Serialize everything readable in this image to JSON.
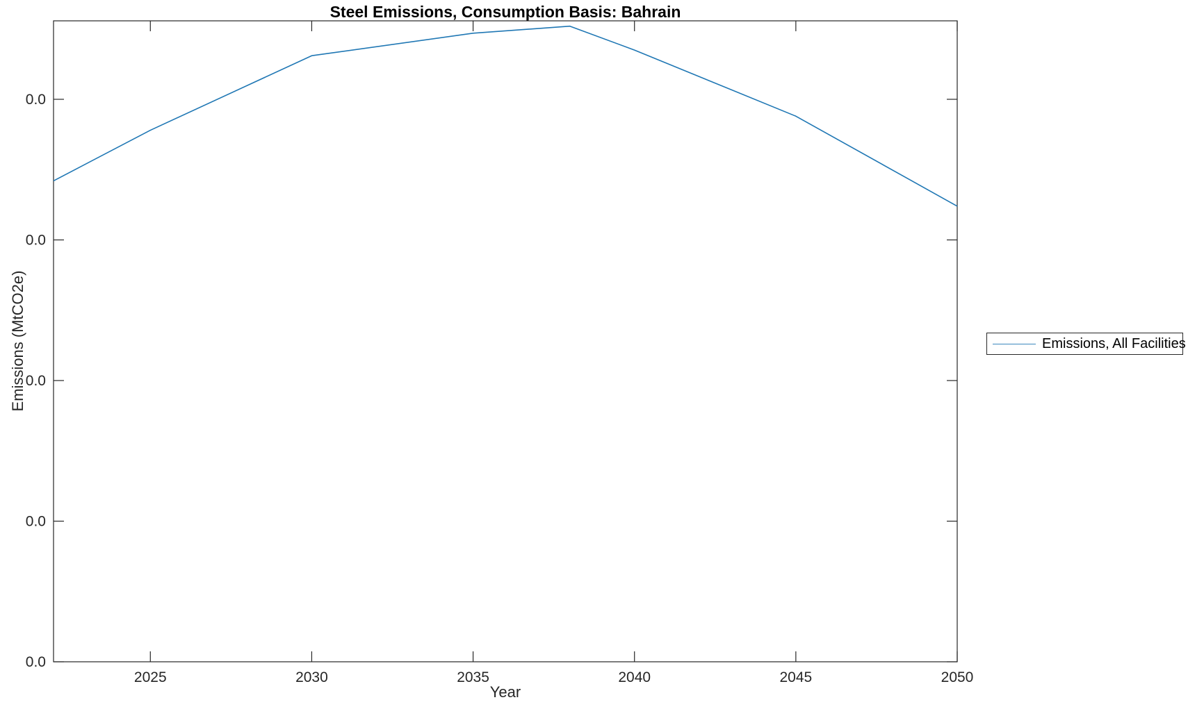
{
  "figure": {
    "background": "#ffffff",
    "axis_color": "#262626"
  },
  "chart_data": {
    "type": "line",
    "title": "Steel Emissions, Consumption Basis: Bahrain",
    "xlabel": "Year",
    "ylabel": "Emissions (MtCO2e)",
    "xlim": [
      2022,
      2050
    ],
    "ylim": [
      0,
      4.558
    ],
    "grid": false,
    "xticks": [
      {
        "value": 2025,
        "label": "2025"
      },
      {
        "value": 2030,
        "label": "2030"
      },
      {
        "value": 2035,
        "label": "2035"
      },
      {
        "value": 2040,
        "label": "2040"
      },
      {
        "value": 2045,
        "label": "2045"
      },
      {
        "value": 2050,
        "label": "2050"
      }
    ],
    "yticks": [
      {
        "value": 0,
        "label": "0.0"
      },
      {
        "value": 1,
        "label": "0.0"
      },
      {
        "value": 2,
        "label": "0.0"
      },
      {
        "value": 3,
        "label": "0.0"
      },
      {
        "value": 4,
        "label": "0.0"
      }
    ],
    "y_value_note": "y values expressed in axis tick-interval units; every visible y tick label renders as 0.0 (values below 0.05 MtCO2e)",
    "legend": {
      "position": "outside-right",
      "entries": [
        {
          "label": "Emissions, All Facilities",
          "color": "#1f77b4"
        }
      ]
    },
    "series": [
      {
        "name": "Emissions, All Facilities",
        "color": "#1f77b4",
        "x": [
          2022,
          2025,
          2030,
          2035,
          2038,
          2040,
          2045,
          2050
        ],
        "y": [
          3.42,
          3.78,
          4.31,
          4.47,
          4.52,
          4.35,
          3.88,
          3.24
        ]
      }
    ]
  }
}
